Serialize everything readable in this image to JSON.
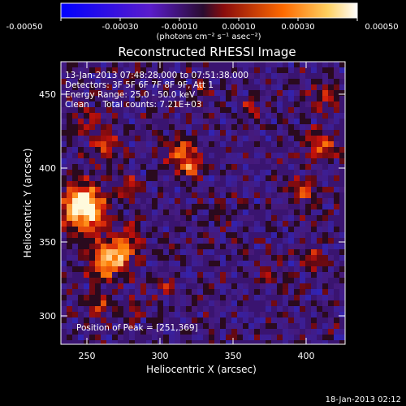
{
  "colorbar": {
    "ticks": [
      "-0.00050",
      "-0.00030",
      "-0.00010",
      "0.00010",
      "0.00030",
      "0.00050"
    ],
    "unit_label": "(photons cm⁻² s⁻¹ asec⁻²)",
    "colors": [
      "#0000ff",
      "#6020c0",
      "#401040",
      "#c01010",
      "#ff8000",
      "#ffffff"
    ]
  },
  "plot": {
    "title": "Reconstructed RHESSI Image",
    "xlabel": "Heliocentric X (arcsec)",
    "ylabel": "Heliocentric Y (arcsec)",
    "xticks": [
      "250",
      "300",
      "350",
      "400"
    ],
    "yticks": [
      "300",
      "350",
      "400",
      "450"
    ],
    "info_lines": [
      "13-Jan-2013 07:48:28.000 to 07:51:38.000",
      "Detectors: 3F 5F 6F 7F 8F 9F, Att 1",
      "Energy Range: 25.0 - 50.0 keV",
      "Clean     Total counts: 7.21E+03"
    ],
    "peak_label": "Position of Peak = [251,369]"
  },
  "footer": {
    "timestamp": "18-Jan-2013 02:12"
  }
}
